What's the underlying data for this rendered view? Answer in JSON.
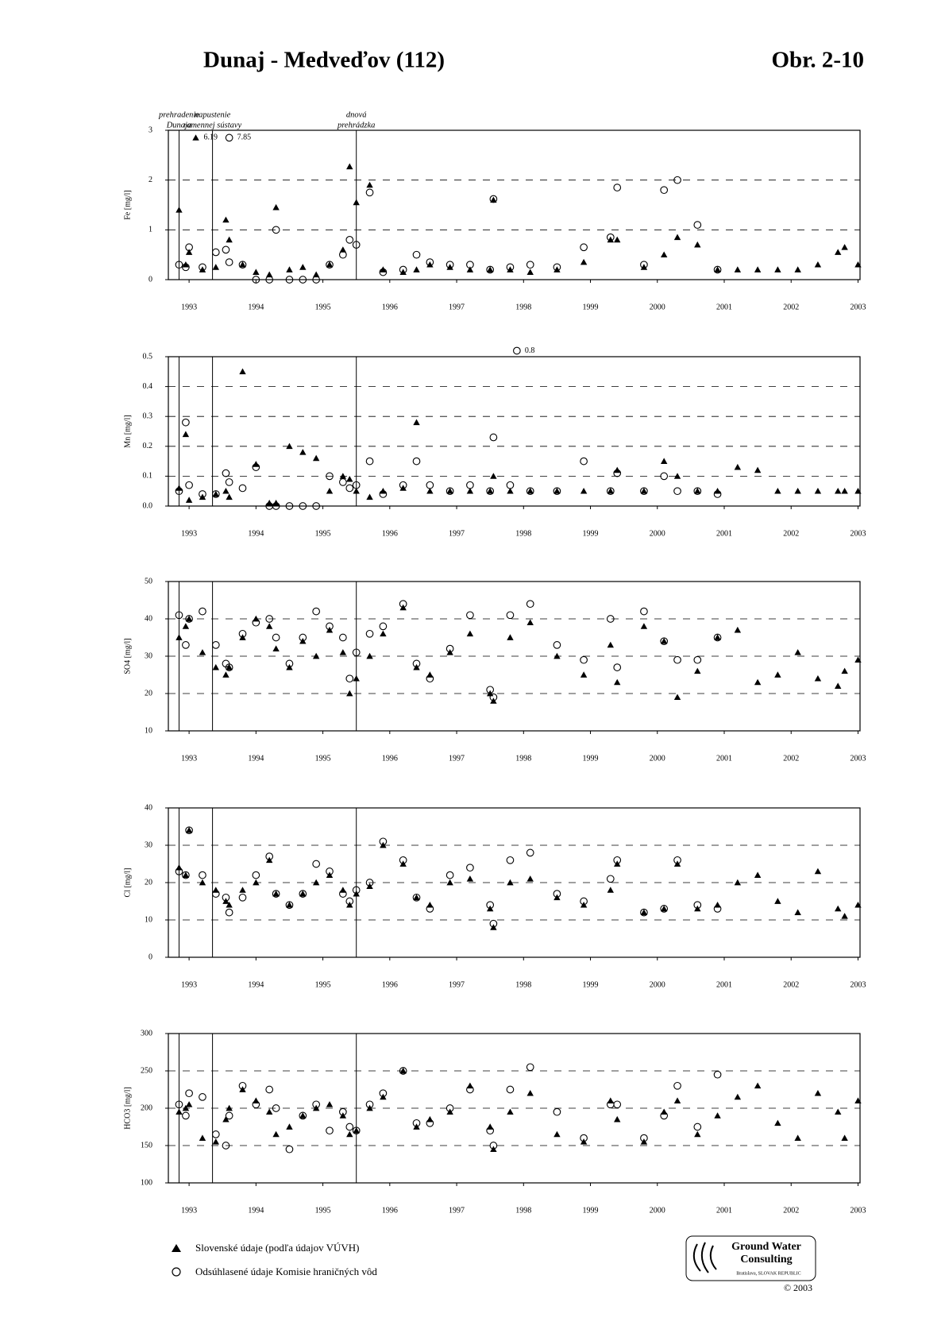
{
  "header": {
    "title": "Dunaj - Medveďov (112)",
    "figure": "Obr. 2-10"
  },
  "chart_data": [
    {
      "type": "scatter",
      "ylabel": "Fe [mg/l]",
      "xlim": [
        1992.69,
        2003.03
      ],
      "ylim": [
        0,
        3
      ],
      "yticks": [
        0,
        1,
        2,
        3
      ],
      "xticks": [
        1993,
        1994,
        1995,
        1996,
        1997,
        1998,
        1999,
        2000,
        2001,
        2002,
        2003
      ],
      "grid": true,
      "x": [
        1992.85,
        1992.95,
        1993.0,
        1993.2,
        1993.4,
        1993.55,
        1993.6,
        1993.8,
        1994.0,
        1994.2,
        1994.3,
        1994.5,
        1994.7,
        1994.9,
        1995.1,
        1995.3,
        1995.4,
        1995.5,
        1995.7,
        1995.9,
        1996.2,
        1996.4,
        1996.6,
        1996.9,
        1997.2,
        1997.5,
        1997.55,
        1997.8,
        1998.1,
        1998.5,
        1998.9,
        1999.3,
        1999.4,
        1999.8,
        2000.1,
        2000.3,
        2000.6,
        2000.9,
        2001.2,
        2001.5,
        2001.8,
        2002.1,
        2002.4,
        2002.7,
        2002.8,
        2003.0
      ],
      "series": [
        {
          "marker": "triangle",
          "color": "#000000",
          "values": [
            1.4,
            0.3,
            0.55,
            0.2,
            0.25,
            1.2,
            0.8,
            0.3,
            0.15,
            0.1,
            1.45,
            0.2,
            0.25,
            0.1,
            0.3,
            0.6,
            2.27,
            1.55,
            1.9,
            0.2,
            0.15,
            0.2,
            0.3,
            0.25,
            0.2,
            0.2,
            1.6,
            0.2,
            0.15,
            0.2,
            0.35,
            0.8,
            0.8,
            0.25,
            0.5,
            0.85,
            0.7,
            0.2,
            0.2,
            0.2,
            0.2,
            0.2,
            0.3,
            0.55,
            0.65,
            0.3
          ]
        },
        {
          "marker": "circle",
          "color": "#000000",
          "values": [
            0.3,
            0.25,
            0.65,
            0.25,
            0.55,
            0.6,
            0.35,
            0.3,
            0,
            0,
            1.0,
            0,
            0,
            0,
            0.3,
            0.5,
            0.8,
            0.7,
            1.75,
            0.15,
            0.2,
            0.5,
            0.35,
            0.3,
            0.3,
            0.2,
            1.62,
            0.25,
            0.3,
            0.25,
            0.65,
            0.85,
            1.85,
            0.3,
            1.8,
            2.0,
            1.1,
            0.2,
            null,
            null,
            null,
            null,
            null,
            null,
            null,
            null
          ]
        }
      ],
      "vlines": [
        1992.85,
        1993.35,
        1995.5
      ],
      "vline_labels": [
        [
          "prehradenie",
          "Dunaja"
        ],
        [
          "napustenie",
          "ramennej sústavy"
        ],
        [
          "dnová",
          "prehrádzka"
        ]
      ],
      "annotations": [
        {
          "text": "6.19",
          "x": 1993.1,
          "y": 2.85,
          "marker": "triangle"
        },
        {
          "text": "7.85",
          "x": 1993.6,
          "y": 2.85,
          "marker": "circle"
        }
      ]
    },
    {
      "type": "scatter",
      "ylabel": "Mn [mg/l]",
      "xlim": [
        1992.69,
        2003.03
      ],
      "ylim": [
        0,
        0.5
      ],
      "yticks": [
        {
          "value": 0,
          "label": "0.0"
        },
        0.1,
        0.2,
        0.3,
        0.4,
        0.5
      ],
      "xticks": [
        1993,
        1994,
        1995,
        1996,
        1997,
        1998,
        1999,
        2000,
        2001,
        2002,
        2003
      ],
      "grid": true,
      "x": [
        1992.85,
        1992.95,
        1993.0,
        1993.2,
        1993.4,
        1993.55,
        1993.6,
        1993.8,
        1994.0,
        1994.2,
        1994.3,
        1994.5,
        1994.7,
        1994.9,
        1995.1,
        1995.3,
        1995.4,
        1995.5,
        1995.7,
        1995.9,
        1996.2,
        1996.4,
        1996.6,
        1996.9,
        1997.2,
        1997.5,
        1997.55,
        1997.8,
        1998.1,
        1998.5,
        1998.9,
        1999.3,
        1999.4,
        1999.8,
        2000.1,
        2000.3,
        2000.6,
        2000.9,
        2001.2,
        2001.5,
        2001.8,
        2002.1,
        2002.4,
        2002.7,
        2002.8,
        2003.0
      ],
      "series": [
        {
          "marker": "triangle",
          "color": "#000000",
          "values": [
            0.06,
            0.24,
            0.02,
            0.03,
            0.04,
            0.05,
            0.03,
            0.45,
            0.14,
            0.01,
            0.01,
            0.2,
            0.18,
            0.16,
            0.05,
            0.1,
            0.09,
            0.05,
            0.03,
            0.05,
            0.06,
            0.28,
            0.05,
            0.05,
            0.05,
            0.05,
            0.1,
            0.05,
            0.05,
            0.05,
            0.05,
            0.05,
            0.12,
            0.05,
            0.15,
            0.1,
            0.05,
            0.05,
            0.13,
            0.12,
            0.05,
            0.05,
            0.05,
            0.05,
            0.05,
            0.05
          ]
        },
        {
          "marker": "circle",
          "color": "#000000",
          "values": [
            0.05,
            0.28,
            0.07,
            0.04,
            0.04,
            0.11,
            0.08,
            0.06,
            0.13,
            0,
            0,
            0,
            0,
            0,
            0.1,
            0.08,
            0.06,
            0.07,
            0.15,
            0.04,
            0.07,
            0.15,
            0.07,
            0.05,
            0.07,
            0.05,
            0.23,
            0.07,
            0.05,
            0.05,
            0.15,
            0.05,
            0.11,
            0.05,
            0.1,
            0.05,
            0.05,
            0.04,
            null,
            null,
            null,
            null,
            null,
            null,
            null,
            null
          ]
        }
      ],
      "vlines": [
        1992.85,
        1993.35,
        1995.5
      ],
      "annotations": [
        {
          "text": "0.8",
          "x": 1997.9,
          "y": 0.52,
          "marker": "circle"
        }
      ]
    },
    {
      "type": "scatter",
      "ylabel": "SO4 [mg/l]",
      "xlim": [
        1992.69,
        2003.03
      ],
      "ylim": [
        10,
        50
      ],
      "yticks": [
        10,
        20,
        30,
        40,
        50
      ],
      "xticks": [
        1993,
        1994,
        1995,
        1996,
        1997,
        1998,
        1999,
        2000,
        2001,
        2002,
        2003
      ],
      "grid": true,
      "x": [
        1992.85,
        1992.95,
        1993.0,
        1993.2,
        1993.4,
        1993.55,
        1993.6,
        1993.8,
        1994.0,
        1994.2,
        1994.3,
        1994.5,
        1994.7,
        1994.9,
        1995.1,
        1995.3,
        1995.4,
        1995.5,
        1995.7,
        1995.9,
        1996.2,
        1996.4,
        1996.6,
        1996.9,
        1997.2,
        1997.5,
        1997.55,
        1997.8,
        1998.1,
        1998.5,
        1998.9,
        1999.3,
        1999.4,
        1999.8,
        2000.1,
        2000.3,
        2000.6,
        2000.9,
        2001.2,
        2001.5,
        2001.8,
        2002.1,
        2002.4,
        2002.7,
        2002.8,
        2003.0
      ],
      "series": [
        {
          "marker": "triangle",
          "color": "#000000",
          "values": [
            35,
            38,
            40,
            31,
            27,
            25,
            27,
            35,
            40,
            38,
            32,
            27,
            34,
            30,
            37,
            31,
            20,
            24,
            30,
            36,
            43,
            27,
            25,
            31,
            36,
            20,
            18,
            35,
            39,
            30,
            25,
            33,
            23,
            38,
            34,
            19,
            26,
            35,
            37,
            23,
            25,
            31,
            24,
            22,
            26,
            29
          ]
        },
        {
          "marker": "circle",
          "color": "#000000",
          "values": [
            41,
            33,
            40,
            42,
            33,
            28,
            27,
            36,
            39,
            40,
            35,
            28,
            35,
            42,
            38,
            35,
            24,
            31,
            36,
            38,
            44,
            28,
            24,
            32,
            41,
            21,
            19,
            41,
            44,
            33,
            29,
            40,
            27,
            42,
            34,
            29,
            29,
            35,
            null,
            null,
            null,
            null,
            null,
            null,
            null,
            null
          ]
        }
      ],
      "vlines": [
        1992.85,
        1993.35,
        1995.5
      ]
    },
    {
      "type": "scatter",
      "ylabel": "Cl [mg/l]",
      "xlim": [
        1992.69,
        2003.03
      ],
      "ylim": [
        0,
        40
      ],
      "yticks": [
        0,
        10,
        20,
        30,
        40
      ],
      "xticks": [
        1993,
        1994,
        1995,
        1996,
        1997,
        1998,
        1999,
        2000,
        2001,
        2002,
        2003
      ],
      "grid": true,
      "x": [
        1992.85,
        1992.95,
        1993.0,
        1993.2,
        1993.4,
        1993.55,
        1993.6,
        1993.8,
        1994.0,
        1994.2,
        1994.3,
        1994.5,
        1994.7,
        1994.9,
        1995.1,
        1995.3,
        1995.4,
        1995.5,
        1995.7,
        1995.9,
        1996.2,
        1996.4,
        1996.6,
        1996.9,
        1997.2,
        1997.5,
        1997.55,
        1997.8,
        1998.1,
        1998.5,
        1998.9,
        1999.3,
        1999.4,
        1999.8,
        2000.1,
        2000.3,
        2000.6,
        2000.9,
        2001.2,
        2001.5,
        2001.8,
        2002.1,
        2002.4,
        2002.7,
        2002.8,
        2003.0
      ],
      "series": [
        {
          "marker": "triangle",
          "color": "#000000",
          "values": [
            24,
            22,
            34,
            20,
            18,
            15,
            14,
            18,
            20,
            26,
            17,
            14,
            17,
            20,
            22,
            18,
            14,
            17,
            19,
            30,
            25,
            16,
            14,
            20,
            21,
            13,
            8,
            20,
            21,
            16,
            14,
            18,
            25,
            12,
            13,
            25,
            13,
            14,
            20,
            22,
            15,
            12,
            23,
            13,
            11,
            14
          ]
        },
        {
          "marker": "circle",
          "color": "#000000",
          "values": [
            23,
            22,
            34,
            22,
            17,
            16,
            12,
            16,
            22,
            27,
            17,
            14,
            17,
            25,
            23,
            17,
            15,
            18,
            20,
            31,
            26,
            16,
            13,
            22,
            24,
            14,
            9,
            26,
            28,
            17,
            15,
            21,
            26,
            12,
            13,
            26,
            14,
            13,
            null,
            null,
            null,
            null,
            null,
            null,
            null,
            null
          ]
        }
      ],
      "vlines": [
        1992.85,
        1993.35,
        1995.5
      ]
    },
    {
      "type": "scatter",
      "ylabel": "HCO3 [mg/l]",
      "xlim": [
        1992.69,
        2003.03
      ],
      "ylim": [
        100,
        300
      ],
      "yticks": [
        100,
        150,
        200,
        250,
        300
      ],
      "xticks": [
        1993,
        1994,
        1995,
        1996,
        1997,
        1998,
        1999,
        2000,
        2001,
        2002,
        2003
      ],
      "grid": true,
      "x": [
        1992.85,
        1992.95,
        1993.0,
        1993.2,
        1993.4,
        1993.55,
        1993.6,
        1993.8,
        1994.0,
        1994.2,
        1994.3,
        1994.5,
        1994.7,
        1994.9,
        1995.1,
        1995.3,
        1995.4,
        1995.5,
        1995.7,
        1995.9,
        1996.2,
        1996.4,
        1996.6,
        1996.9,
        1997.2,
        1997.5,
        1997.55,
        1997.8,
        1998.1,
        1998.5,
        1998.9,
        1999.3,
        1999.4,
        1999.8,
        2000.1,
        2000.3,
        2000.6,
        2000.9,
        2001.2,
        2001.5,
        2001.8,
        2002.1,
        2002.4,
        2002.7,
        2002.8,
        2003.0
      ],
      "series": [
        {
          "marker": "triangle",
          "color": "#000000",
          "values": [
            195,
            200,
            205,
            160,
            155,
            185,
            200,
            225,
            210,
            195,
            165,
            175,
            190,
            200,
            205,
            190,
            165,
            170,
            200,
            215,
            250,
            175,
            185,
            195,
            230,
            175,
            145,
            195,
            220,
            165,
            155,
            210,
            185,
            155,
            195,
            210,
            165,
            190,
            215,
            230,
            180,
            160,
            220,
            195,
            160,
            210
          ]
        },
        {
          "marker": "circle",
          "color": "#000000",
          "values": [
            205,
            190,
            220,
            215,
            165,
            150,
            190,
            230,
            205,
            225,
            200,
            145,
            190,
            205,
            170,
            195,
            175,
            170,
            205,
            220,
            250,
            180,
            180,
            200,
            225,
            170,
            150,
            225,
            255,
            195,
            160,
            205,
            205,
            160,
            190,
            230,
            175,
            245,
            null,
            null,
            null,
            null,
            null,
            null,
            null,
            null
          ]
        }
      ],
      "vlines": [
        1992.85,
        1993.35,
        1995.5
      ]
    }
  ],
  "legend": [
    "Slovenské údaje (podľa údajov VÚVH)",
    "Odsúhlasené údaje Komisie hraničných vôd"
  ],
  "logo": {
    "lines": [
      "Ground Water",
      "Consulting"
    ],
    "place": "Bratislava, SLOVAK REPUBLIC",
    "copyright": "© 2003"
  }
}
